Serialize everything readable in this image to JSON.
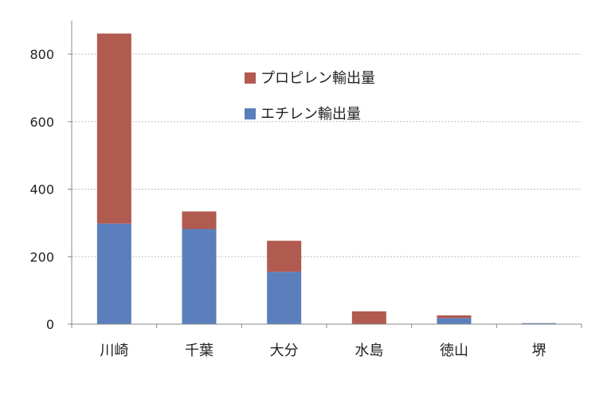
{
  "chart_data": {
    "type": "bar",
    "stacked": true,
    "categories": [
      "川崎",
      "千葉",
      "大分",
      "水島",
      "徳山",
      "堺"
    ],
    "series": [
      {
        "name": "エチレン輸出量",
        "color": "#5b7fbc",
        "values": [
          298,
          282,
          155,
          0,
          18,
          3
        ]
      },
      {
        "name": "プロピレン輸出量",
        "color": "#b05a50",
        "values": [
          563,
          52,
          92,
          38,
          8,
          0
        ]
      }
    ],
    "yticks": [
      "0",
      "200",
      "400",
      "600",
      "800"
    ],
    "ylim": [
      0,
      900
    ],
    "grid": true,
    "legend_position": "top-center"
  }
}
